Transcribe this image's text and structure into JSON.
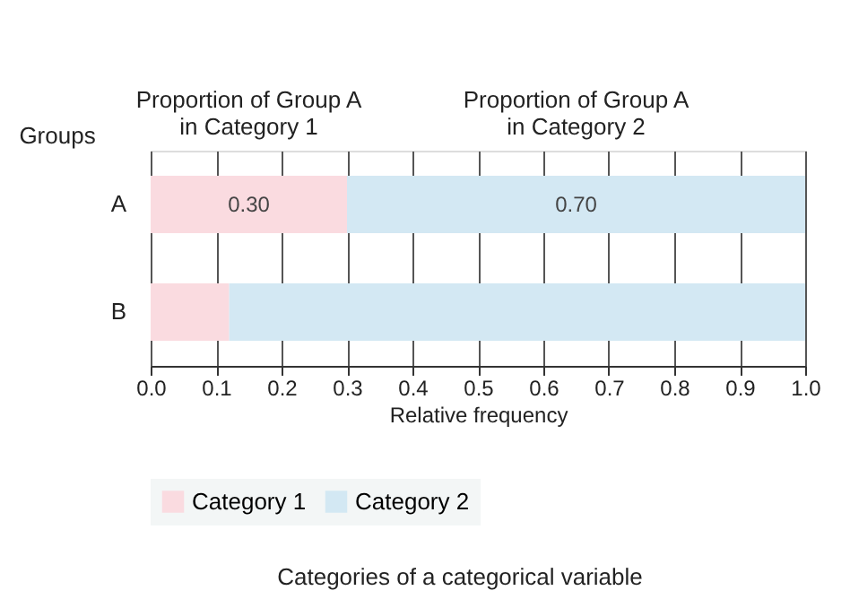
{
  "chart_data": {
    "type": "bar",
    "orientation": "horizontal",
    "stacked": true,
    "xlabel": "Relative frequency",
    "categories": [
      "A",
      "B"
    ],
    "series": [
      {
        "name": "Category 1",
        "color": "#fadbe0",
        "values": [
          0.3,
          0.12
        ],
        "value_labels": [
          "0.30",
          null
        ]
      },
      {
        "name": "Category 2",
        "color": "#d3e8f3",
        "values": [
          0.7,
          0.88
        ],
        "value_labels": [
          "0.70",
          null
        ]
      }
    ],
    "xlim": [
      0,
      1
    ],
    "xticks": [
      {
        "value": 0,
        "label": "0.0"
      },
      0.1,
      0.2,
      0.3,
      0.4,
      0.5,
      0.6,
      0.7,
      0.8,
      0.9,
      {
        "value": 1,
        "label": "1.0"
      }
    ],
    "grid": "x",
    "legend": "bottom",
    "annotations": [
      "Proportion of Group A\nin Category 1",
      "Proportion of Group A\nin Category 2",
      "Groups",
      "Categories of a categorical variable"
    ]
  }
}
